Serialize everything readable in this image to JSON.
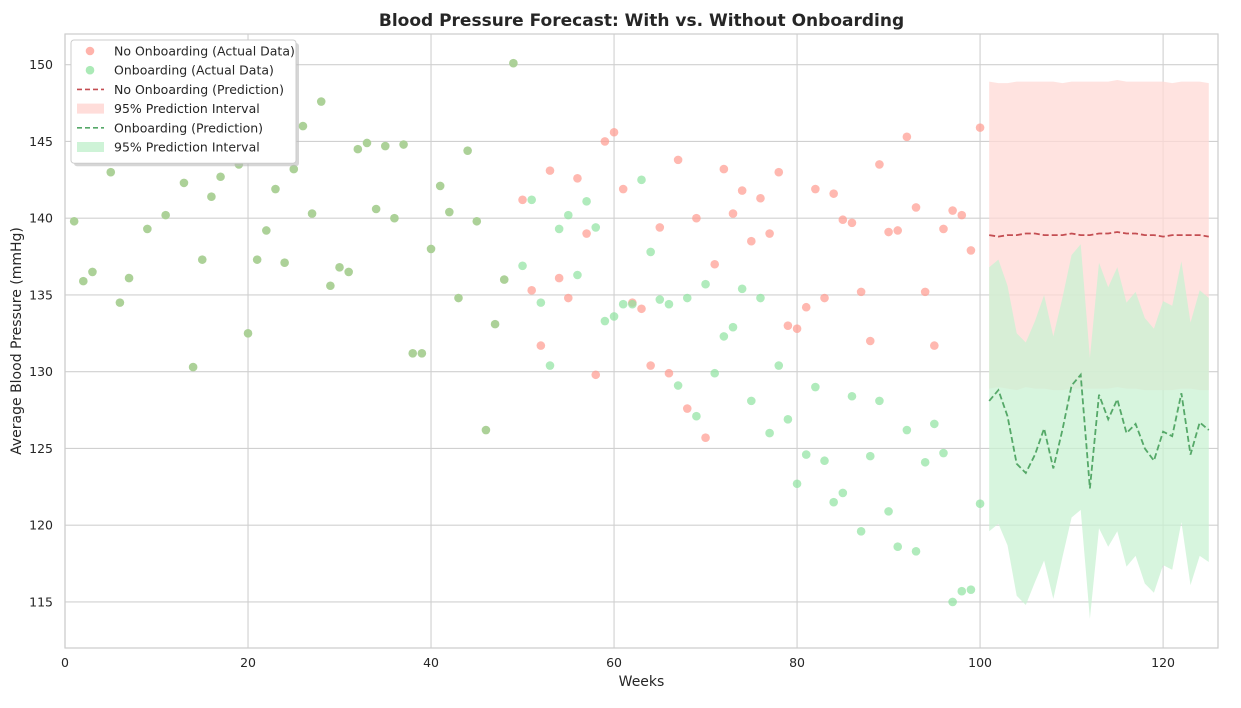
{
  "chart_data": {
    "type": "scatter",
    "title": "Blood Pressure Forecast: With vs. Without Onboarding",
    "xlabel": "Weeks",
    "ylabel": "Average Blood Pressure (mmHg)",
    "xlim": [
      0,
      126
    ],
    "ylim": [
      112,
      152
    ],
    "xticks": [
      0,
      20,
      40,
      60,
      80,
      100,
      120
    ],
    "yticks": [
      115,
      120,
      125,
      130,
      135,
      140,
      145,
      150
    ],
    "grid": true,
    "legend_position": "top-left",
    "colors": {
      "no_onboarding_point": "#ff9a8f",
      "onboarding_point": "#8fe39f",
      "overlap_point": "#a8cf92",
      "no_onboarding_line": "#c44e52",
      "onboarding_line": "#55a868",
      "no_onboarding_band": "#ffd9d6",
      "onboarding_band": "#c9f2d3"
    },
    "legend": [
      {
        "label": "No Onboarding (Actual Data)",
        "kind": "point",
        "color": "#ff9a8f"
      },
      {
        "label": "Onboarding (Actual Data)",
        "kind": "point",
        "color": "#8fe39f"
      },
      {
        "label": "No Onboarding (Prediction)",
        "kind": "dashed",
        "color": "#c44e52"
      },
      {
        "label": "95% Prediction Interval",
        "kind": "band",
        "color": "#ffd9d6"
      },
      {
        "label": "Onboarding (Prediction)",
        "kind": "dashed",
        "color": "#55a868"
      },
      {
        "label": "95% Prediction Interval",
        "kind": "band",
        "color": "#c9f2d3"
      }
    ],
    "shared_actual": {
      "x": [
        1,
        2,
        3,
        5,
        6,
        7,
        9,
        11,
        13,
        14,
        15,
        16,
        17,
        19,
        20,
        21,
        22,
        23,
        24,
        25,
        26,
        27,
        28,
        29,
        30,
        31,
        32,
        33,
        34,
        35,
        36,
        37,
        38,
        39,
        40,
        41,
        42,
        43,
        44,
        45,
        46,
        47,
        48,
        49
      ],
      "y": [
        139.8,
        135.9,
        136.5,
        143.0,
        134.5,
        136.1,
        139.3,
        140.2,
        142.3,
        130.3,
        137.3,
        141.4,
        142.7,
        143.5,
        132.5,
        137.3,
        139.2,
        141.9,
        137.1,
        143.2,
        146.0,
        140.3,
        147.6,
        135.6,
        136.8,
        136.5,
        144.5,
        144.9,
        140.6,
        144.7,
        140.0,
        144.8,
        131.2,
        131.2,
        138.0,
        142.1,
        140.4,
        134.8,
        144.4,
        139.8,
        126.2,
        133.1,
        136.0,
        150.1
      ]
    },
    "series": [
      {
        "name": "No Onboarding (Actual Data)",
        "x": [
          50,
          51,
          52,
          53,
          54,
          55,
          56,
          57,
          58,
          59,
          60,
          61,
          62,
          63,
          64,
          65,
          66,
          67,
          68,
          69,
          70,
          71,
          72,
          73,
          74,
          75,
          76,
          77,
          78,
          79,
          80,
          81,
          82,
          83,
          84,
          85,
          86,
          87,
          88,
          89,
          90,
          91,
          92,
          93,
          94,
          95,
          96,
          97,
          98,
          99,
          100
        ],
        "y": [
          141.2,
          135.3,
          131.7,
          143.1,
          136.1,
          134.8,
          142.6,
          139.0,
          129.8,
          145.0,
          145.6,
          141.9,
          134.5,
          134.1,
          130.4,
          139.4,
          129.9,
          143.8,
          127.6,
          140.0,
          125.7,
          137.0,
          143.2,
          140.3,
          141.8,
          138.5,
          141.3,
          139.0,
          143.0,
          133.0,
          132.8,
          134.2,
          141.9,
          134.8,
          141.6,
          139.9,
          139.7,
          135.2,
          132.0,
          143.5,
          139.1,
          139.2,
          145.3,
          140.7,
          135.2,
          131.7,
          139.3,
          140.5,
          140.2,
          137.9,
          145.9
        ]
      },
      {
        "name": "Onboarding (Actual Data)",
        "x": [
          50,
          51,
          52,
          53,
          54,
          55,
          56,
          57,
          58,
          59,
          60,
          61,
          62,
          63,
          64,
          65,
          66,
          67,
          68,
          69,
          70,
          71,
          72,
          73,
          74,
          75,
          76,
          77,
          78,
          79,
          80,
          81,
          82,
          83,
          84,
          85,
          86,
          87,
          88,
          89,
          90,
          91,
          92,
          93,
          94,
          95,
          96,
          97,
          98,
          99,
          100
        ],
        "y": [
          136.9,
          141.2,
          134.5,
          130.4,
          139.3,
          140.2,
          136.3,
          141.1,
          139.4,
          133.3,
          133.6,
          134.4,
          134.4,
          142.5,
          137.8,
          134.7,
          134.4,
          129.1,
          134.8,
          127.1,
          135.7,
          129.9,
          132.3,
          132.9,
          135.4,
          128.1,
          134.8,
          126.0,
          130.4,
          126.9,
          122.7,
          124.6,
          129.0,
          124.2,
          121.5,
          122.1,
          128.4,
          119.6,
          124.5,
          128.1,
          120.9,
          118.6,
          126.2,
          118.3,
          124.1,
          126.6,
          124.7,
          115.0,
          115.7,
          115.8,
          121.4
        ]
      },
      {
        "name": "No Onboarding (Prediction)",
        "x": [
          101,
          102,
          103,
          104,
          105,
          106,
          107,
          108,
          109,
          110,
          111,
          112,
          113,
          114,
          115,
          116,
          117,
          118,
          119,
          120,
          121,
          122,
          123,
          124,
          125
        ],
        "y": [
          138.9,
          138.8,
          138.9,
          138.9,
          139.0,
          139.0,
          138.9,
          138.9,
          138.9,
          139.0,
          138.9,
          138.9,
          139.0,
          139.0,
          139.1,
          139.0,
          139.0,
          138.9,
          138.9,
          138.8,
          138.9,
          138.9,
          138.9,
          138.9,
          138.8
        ],
        "lower": [
          128.9,
          129.0,
          128.9,
          128.8,
          129.0,
          128.9,
          128.9,
          128.8,
          128.8,
          128.9,
          128.9,
          128.9,
          128.9,
          128.9,
          129.0,
          128.9,
          128.9,
          128.8,
          128.8,
          128.8,
          128.8,
          128.9,
          128.9,
          128.8,
          128.8
        ],
        "upper": [
          148.9,
          148.8,
          148.8,
          148.9,
          148.9,
          148.9,
          148.9,
          148.9,
          148.8,
          148.9,
          148.9,
          148.9,
          148.9,
          148.9,
          149.0,
          148.9,
          148.9,
          148.9,
          148.9,
          148.9,
          148.8,
          148.9,
          148.9,
          148.9,
          148.8
        ]
      },
      {
        "name": "Onboarding (Prediction)",
        "x": [
          101,
          102,
          103,
          104,
          105,
          106,
          107,
          108,
          109,
          110,
          111,
          112,
          113,
          114,
          115,
          116,
          117,
          118,
          119,
          120,
          121,
          122,
          123,
          124,
          125
        ],
        "y": [
          128.1,
          128.8,
          127.1,
          124.0,
          123.4,
          124.6,
          126.3,
          123.7,
          126.2,
          129.1,
          129.8,
          122.4,
          128.5,
          126.9,
          128.2,
          126.0,
          126.6,
          125.0,
          124.2,
          126.1,
          125.8,
          128.6,
          124.6,
          126.7,
          126.2
        ],
        "lower": [
          119.6,
          120.1,
          118.7,
          115.4,
          114.8,
          116.3,
          117.7,
          115.2,
          117.9,
          120.5,
          121.0,
          113.9,
          119.8,
          118.6,
          119.6,
          117.3,
          118.0,
          116.2,
          115.6,
          117.4,
          117.1,
          120.2,
          116.1,
          118.0,
          117.6
        ],
        "upper": [
          136.8,
          137.3,
          135.6,
          132.5,
          131.9,
          133.3,
          135.0,
          132.3,
          134.8,
          137.6,
          138.3,
          130.9,
          137.1,
          135.5,
          136.8,
          134.5,
          135.2,
          133.5,
          132.8,
          134.6,
          134.3,
          137.2,
          133.2,
          135.3,
          134.8
        ]
      }
    ]
  }
}
